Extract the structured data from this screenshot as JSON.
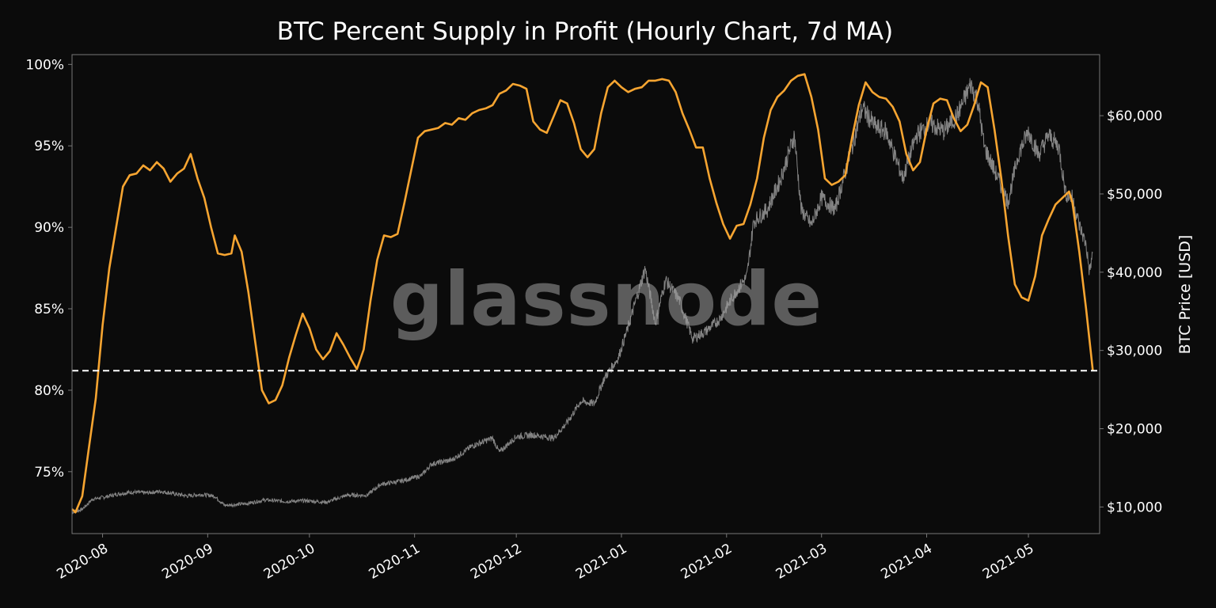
{
  "chart_data": {
    "type": "line",
    "title": "BTC Percent Supply in Profit (Hourly Chart, 7d MA)",
    "xlabel": "",
    "ylabel_left": "",
    "ylabel_right": "BTC Price [USD]",
    "watermark": "glassnode",
    "x_range": [
      "2020-07-23",
      "2021-05-22"
    ],
    "x_ticks": [
      {
        "date": "2020-08-01",
        "label": "2020-08"
      },
      {
        "date": "2020-09-01",
        "label": "2020-09"
      },
      {
        "date": "2020-10-01",
        "label": "2020-10"
      },
      {
        "date": "2020-11-01",
        "label": "2020-11"
      },
      {
        "date": "2020-12-01",
        "label": "2020-12"
      },
      {
        "date": "2021-01-01",
        "label": "2021-01"
      },
      {
        "date": "2021-02-01",
        "label": "2021-02"
      },
      {
        "date": "2021-03-01",
        "label": "2021-03"
      },
      {
        "date": "2021-04-01",
        "label": "2021-04"
      },
      {
        "date": "2021-05-01",
        "label": "2021-05"
      }
    ],
    "y_left": {
      "range": [
        71.2,
        100.6
      ],
      "ticks": [
        {
          "v": 75,
          "label": "75%"
        },
        {
          "v": 80,
          "label": "80%"
        },
        {
          "v": 85,
          "label": "85%"
        },
        {
          "v": 90,
          "label": "90%"
        },
        {
          "v": 95,
          "label": "95%"
        },
        {
          "v": 100,
          "label": "100%"
        }
      ]
    },
    "y_right": {
      "range": [
        6600,
        67800
      ],
      "ticks": [
        {
          "v": 10000,
          "label": "$10,000"
        },
        {
          "v": 20000,
          "label": "$20,000"
        },
        {
          "v": 30000,
          "label": "$30,000"
        },
        {
          "v": 40000,
          "label": "$40,000"
        },
        {
          "v": 50000,
          "label": "$50,000"
        },
        {
          "v": 60000,
          "label": "$60,000"
        }
      ]
    },
    "reference_line": {
      "axis": "left",
      "value": 81.2,
      "style": "dashed",
      "color": "#ffffff"
    },
    "colors": {
      "supply_in_profit": "#f7a531",
      "price": "#9a9a9a",
      "background": "#0b0b0b",
      "axes": "#777777",
      "watermark": "#6b6b6b"
    },
    "series": [
      {
        "axis": "left",
        "color": "#f7a531",
        "points": [
          [
            "2020-07-23",
            72.7
          ],
          [
            "2020-07-24",
            72.5
          ],
          [
            "2020-07-26",
            73.5
          ],
          [
            "2020-07-28",
            76.5
          ],
          [
            "2020-07-30",
            79.5
          ],
          [
            "2020-08-01",
            84.0
          ],
          [
            "2020-08-03",
            87.5
          ],
          [
            "2020-08-05",
            90.0
          ],
          [
            "2020-08-07",
            92.5
          ],
          [
            "2020-08-09",
            93.2
          ],
          [
            "2020-08-11",
            93.3
          ],
          [
            "2020-08-13",
            93.8
          ],
          [
            "2020-08-15",
            93.5
          ],
          [
            "2020-08-17",
            94.0
          ],
          [
            "2020-08-19",
            93.6
          ],
          [
            "2020-08-21",
            92.8
          ],
          [
            "2020-08-23",
            93.3
          ],
          [
            "2020-08-25",
            93.6
          ],
          [
            "2020-08-27",
            94.5
          ],
          [
            "2020-08-29",
            93.0
          ],
          [
            "2020-08-31",
            91.8
          ],
          [
            "2020-09-02",
            90.0
          ],
          [
            "2020-09-04",
            88.4
          ],
          [
            "2020-09-06",
            88.3
          ],
          [
            "2020-09-08",
            88.4
          ],
          [
            "2020-09-09",
            89.5
          ],
          [
            "2020-09-11",
            88.5
          ],
          [
            "2020-09-13",
            86.0
          ],
          [
            "2020-09-15",
            83.0
          ],
          [
            "2020-09-17",
            80.0
          ],
          [
            "2020-09-19",
            79.2
          ],
          [
            "2020-09-21",
            79.4
          ],
          [
            "2020-09-23",
            80.3
          ],
          [
            "2020-09-25",
            82.0
          ],
          [
            "2020-09-27",
            83.4
          ],
          [
            "2020-09-29",
            84.7
          ],
          [
            "2020-10-01",
            83.8
          ],
          [
            "2020-10-03",
            82.5
          ],
          [
            "2020-10-05",
            81.9
          ],
          [
            "2020-10-07",
            82.4
          ],
          [
            "2020-10-09",
            83.5
          ],
          [
            "2020-10-11",
            82.8
          ],
          [
            "2020-10-13",
            82.0
          ],
          [
            "2020-10-15",
            81.3
          ],
          [
            "2020-10-17",
            82.5
          ],
          [
            "2020-10-19",
            85.5
          ],
          [
            "2020-10-21",
            88.0
          ],
          [
            "2020-10-23",
            89.5
          ],
          [
            "2020-10-25",
            89.4
          ],
          [
            "2020-10-27",
            89.6
          ],
          [
            "2020-10-29",
            91.5
          ],
          [
            "2020-10-31",
            93.5
          ],
          [
            "2020-11-02",
            95.5
          ],
          [
            "2020-11-04",
            95.9
          ],
          [
            "2020-11-06",
            96.0
          ],
          [
            "2020-11-08",
            96.1
          ],
          [
            "2020-11-10",
            96.4
          ],
          [
            "2020-11-12",
            96.3
          ],
          [
            "2020-11-14",
            96.7
          ],
          [
            "2020-11-16",
            96.6
          ],
          [
            "2020-11-18",
            97.0
          ],
          [
            "2020-11-20",
            97.2
          ],
          [
            "2020-11-22",
            97.3
          ],
          [
            "2020-11-24",
            97.5
          ],
          [
            "2020-11-26",
            98.2
          ],
          [
            "2020-11-28",
            98.4
          ],
          [
            "2020-11-30",
            98.8
          ],
          [
            "2020-12-02",
            98.7
          ],
          [
            "2020-12-04",
            98.5
          ],
          [
            "2020-12-06",
            96.5
          ],
          [
            "2020-12-08",
            96.0
          ],
          [
            "2020-12-10",
            95.8
          ],
          [
            "2020-12-12",
            96.8
          ],
          [
            "2020-12-14",
            97.8
          ],
          [
            "2020-12-16",
            97.6
          ],
          [
            "2020-12-18",
            96.4
          ],
          [
            "2020-12-20",
            94.8
          ],
          [
            "2020-12-22",
            94.3
          ],
          [
            "2020-12-24",
            94.8
          ],
          [
            "2020-12-26",
            97.0
          ],
          [
            "2020-12-28",
            98.6
          ],
          [
            "2020-12-30",
            99.0
          ],
          [
            "2021-01-01",
            98.6
          ],
          [
            "2021-01-03",
            98.3
          ],
          [
            "2021-01-05",
            98.5
          ],
          [
            "2021-01-07",
            98.6
          ],
          [
            "2021-01-09",
            99.0
          ],
          [
            "2021-01-11",
            99.0
          ],
          [
            "2021-01-13",
            99.1
          ],
          [
            "2021-01-15",
            99.0
          ],
          [
            "2021-01-17",
            98.3
          ],
          [
            "2021-01-19",
            97.0
          ],
          [
            "2021-01-21",
            96.0
          ],
          [
            "2021-01-23",
            94.9
          ],
          [
            "2021-01-25",
            94.9
          ],
          [
            "2021-01-27",
            93.0
          ],
          [
            "2021-01-29",
            91.5
          ],
          [
            "2021-01-31",
            90.2
          ],
          [
            "2021-02-02",
            89.3
          ],
          [
            "2021-02-04",
            90.1
          ],
          [
            "2021-02-06",
            90.2
          ],
          [
            "2021-02-08",
            91.4
          ],
          [
            "2021-02-10",
            93.0
          ],
          [
            "2021-02-12",
            95.5
          ],
          [
            "2021-02-14",
            97.2
          ],
          [
            "2021-02-16",
            98.0
          ],
          [
            "2021-02-18",
            98.4
          ],
          [
            "2021-02-20",
            99.0
          ],
          [
            "2021-02-22",
            99.3
          ],
          [
            "2021-02-24",
            99.4
          ],
          [
            "2021-02-26",
            98.0
          ],
          [
            "2021-02-28",
            96.0
          ],
          [
            "2021-03-02",
            93.0
          ],
          [
            "2021-03-04",
            92.6
          ],
          [
            "2021-03-06",
            92.8
          ],
          [
            "2021-03-08",
            93.2
          ],
          [
            "2021-03-10",
            95.5
          ],
          [
            "2021-03-12",
            97.5
          ],
          [
            "2021-03-14",
            98.9
          ],
          [
            "2021-03-16",
            98.3
          ],
          [
            "2021-03-18",
            98.0
          ],
          [
            "2021-03-20",
            97.9
          ],
          [
            "2021-03-22",
            97.4
          ],
          [
            "2021-03-24",
            96.5
          ],
          [
            "2021-03-26",
            94.5
          ],
          [
            "2021-03-28",
            93.5
          ],
          [
            "2021-03-30",
            94.0
          ],
          [
            "2021-04-01",
            96.0
          ],
          [
            "2021-04-03",
            97.6
          ],
          [
            "2021-04-05",
            97.9
          ],
          [
            "2021-04-07",
            97.8
          ],
          [
            "2021-04-09",
            96.7
          ],
          [
            "2021-04-11",
            95.9
          ],
          [
            "2021-04-13",
            96.3
          ],
          [
            "2021-04-15",
            97.5
          ],
          [
            "2021-04-17",
            98.9
          ],
          [
            "2021-04-19",
            98.6
          ],
          [
            "2021-04-21",
            96.0
          ],
          [
            "2021-04-23",
            93.0
          ],
          [
            "2021-04-25",
            89.5
          ],
          [
            "2021-04-27",
            86.5
          ],
          [
            "2021-04-29",
            85.7
          ],
          [
            "2021-05-01",
            85.5
          ],
          [
            "2021-05-03",
            87.0
          ],
          [
            "2021-05-05",
            89.5
          ],
          [
            "2021-05-07",
            90.5
          ],
          [
            "2021-05-09",
            91.4
          ],
          [
            "2021-05-11",
            91.8
          ],
          [
            "2021-05-13",
            92.2
          ],
          [
            "2021-05-14",
            91.5
          ],
          [
            "2021-05-16",
            88.5
          ],
          [
            "2021-05-18",
            85.0
          ],
          [
            "2021-05-20",
            81.2
          ]
        ]
      },
      {
        "axis": "right",
        "color": "#9a9a9a",
        "points": [
          [
            "2020-07-23",
            9300
          ],
          [
            "2020-07-26",
            9700
          ],
          [
            "2020-07-29",
            11000
          ],
          [
            "2020-08-02",
            11300
          ],
          [
            "2020-08-06",
            11700
          ],
          [
            "2020-08-10",
            11900
          ],
          [
            "2020-08-14",
            11800
          ],
          [
            "2020-08-18",
            12000
          ],
          [
            "2020-08-22",
            11700
          ],
          [
            "2020-08-26",
            11400
          ],
          [
            "2020-08-30",
            11600
          ],
          [
            "2020-09-03",
            11400
          ],
          [
            "2020-09-06",
            10200
          ],
          [
            "2020-09-12",
            10400
          ],
          [
            "2020-09-18",
            10900
          ],
          [
            "2020-09-24",
            10700
          ],
          [
            "2020-09-30",
            10800
          ],
          [
            "2020-10-06",
            10600
          ],
          [
            "2020-10-12",
            11500
          ],
          [
            "2020-10-18",
            11500
          ],
          [
            "2020-10-22",
            12900
          ],
          [
            "2020-10-28",
            13300
          ],
          [
            "2020-11-03",
            14000
          ],
          [
            "2020-11-06",
            15500
          ],
          [
            "2020-11-12",
            16000
          ],
          [
            "2020-11-18",
            17800
          ],
          [
            "2020-11-24",
            18800
          ],
          [
            "2020-11-26",
            17000
          ],
          [
            "2020-12-01",
            19000
          ],
          [
            "2020-12-06",
            19200
          ],
          [
            "2020-12-12",
            18800
          ],
          [
            "2020-12-16",
            20800
          ],
          [
            "2020-12-20",
            23500
          ],
          [
            "2020-12-24",
            23200
          ],
          [
            "2020-12-27",
            26500
          ],
          [
            "2020-12-31",
            29000
          ],
          [
            "2021-01-03",
            33000
          ],
          [
            "2021-01-08",
            40500
          ],
          [
            "2021-01-11",
            33500
          ],
          [
            "2021-01-14",
            39000
          ],
          [
            "2021-01-18",
            36500
          ],
          [
            "2021-01-22",
            31500
          ],
          [
            "2021-01-26",
            32500
          ],
          [
            "2021-01-30",
            34000
          ],
          [
            "2021-02-03",
            37000
          ],
          [
            "2021-02-07",
            39500
          ],
          [
            "2021-02-09",
            46500
          ],
          [
            "2021-02-13",
            48000
          ],
          [
            "2021-02-17",
            52000
          ],
          [
            "2021-02-21",
            57500
          ],
          [
            "2021-02-23",
            48000
          ],
          [
            "2021-02-26",
            46000
          ],
          [
            "2021-03-01",
            49500
          ],
          [
            "2021-03-05",
            48000
          ],
          [
            "2021-03-10",
            56000
          ],
          [
            "2021-03-13",
            61000
          ],
          [
            "2021-03-17",
            58500
          ],
          [
            "2021-03-20",
            58000
          ],
          [
            "2021-03-25",
            52000
          ],
          [
            "2021-03-29",
            57500
          ],
          [
            "2021-04-02",
            59000
          ],
          [
            "2021-04-06",
            58000
          ],
          [
            "2021-04-10",
            60000
          ],
          [
            "2021-04-14",
            64000
          ],
          [
            "2021-04-16",
            62000
          ],
          [
            "2021-04-18",
            56000
          ],
          [
            "2021-04-22",
            52000
          ],
          [
            "2021-04-25",
            49000
          ],
          [
            "2021-04-28",
            55000
          ],
          [
            "2021-05-01",
            58000
          ],
          [
            "2021-05-04",
            55000
          ],
          [
            "2021-05-07",
            57500
          ],
          [
            "2021-05-10",
            56000
          ],
          [
            "2021-05-12",
            50000
          ],
          [
            "2021-05-14",
            49500
          ],
          [
            "2021-05-16",
            46000
          ],
          [
            "2021-05-18",
            43500
          ],
          [
            "2021-05-19",
            40000
          ],
          [
            "2021-05-20",
            42500
          ]
        ]
      }
    ]
  }
}
